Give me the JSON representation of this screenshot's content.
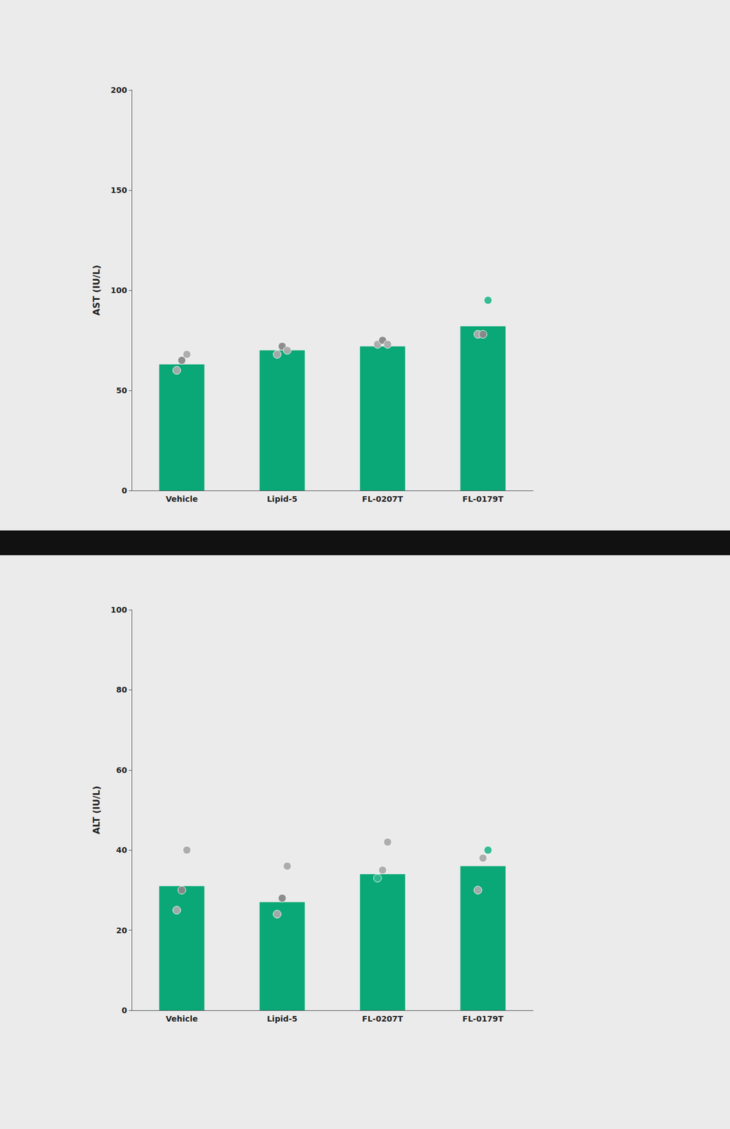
{
  "chart_data": [
    {
      "type": "bar",
      "categories": [
        "Vehicle",
        "Lipid-5",
        "FL-0207T",
        "FL-0179T"
      ],
      "ylabel": "AST (IU/L)",
      "ylim": [
        0,
        200
      ],
      "yticks": [
        0,
        50,
        100,
        150,
        200
      ],
      "grid": false,
      "series": [
        {
          "type": "bar",
          "color": "#09a876",
          "values": [
            63,
            70,
            72,
            82
          ]
        },
        {
          "type": "scatter",
          "marker": "circle",
          "values": [
            [
              60,
              65,
              68
            ],
            [
              68,
              72,
              70
            ],
            [
              73,
              75,
              73
            ],
            [
              78,
              78,
              95
            ]
          ],
          "colors": [
            [
              "#aaaaaa",
              "#888888",
              "#aaaaaa"
            ],
            [
              "#aaaaaa",
              "#888888",
              "#aaaaaa"
            ],
            [
              "#aaaaaa",
              "#888888",
              "#aaaaaa"
            ],
            [
              "#aaaaaa",
              "#888888",
              "#2db88e"
            ]
          ]
        }
      ]
    },
    {
      "type": "bar",
      "categories": [
        "Vehicle",
        "Lipid-5",
        "FL-0207T",
        "FL-0179T"
      ],
      "ylabel": "ALT (IU/L)",
      "ylim": [
        0,
        100
      ],
      "yticks": [
        0,
        20,
        40,
        60,
        80,
        100
      ],
      "grid": false,
      "series": [
        {
          "type": "bar",
          "color": "#09a876",
          "values": [
            31,
            27,
            34,
            36
          ]
        },
        {
          "type": "scatter",
          "marker": "circle",
          "values": [
            [
              25,
              30,
              40
            ],
            [
              24,
              28,
              36
            ],
            [
              33,
              35,
              42
            ],
            [
              30,
              38,
              40
            ]
          ],
          "colors": [
            [
              "#aaaaaa",
              "#888888",
              "#aaaaaa"
            ],
            [
              "#aaaaaa",
              "#888888",
              "#aaaaaa"
            ],
            [
              "#2db88e",
              "#aaaaaa",
              "#aaaaaa"
            ],
            [
              "#aaaaaa",
              "#aaaaaa",
              "#2db88e"
            ]
          ]
        }
      ]
    }
  ]
}
